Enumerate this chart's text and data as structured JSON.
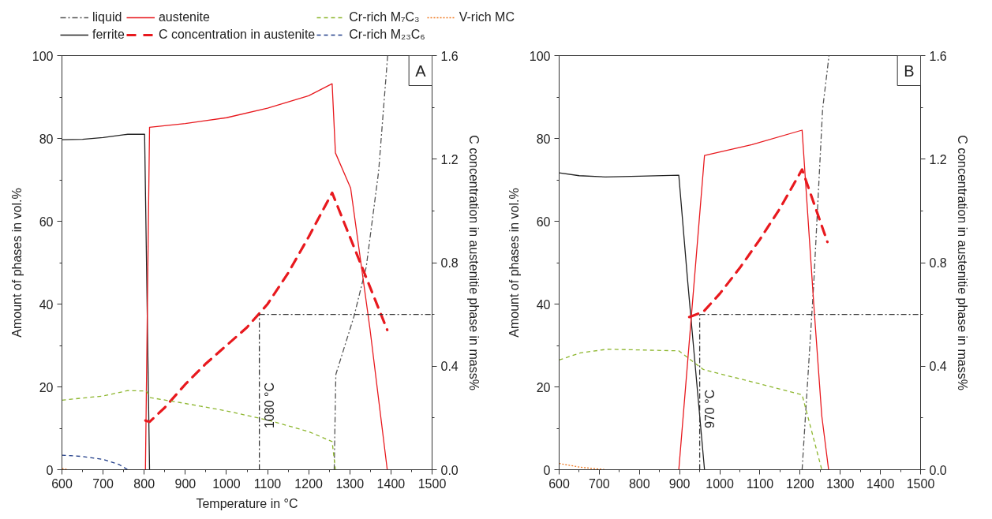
{
  "chart_data": [
    {
      "type": "line",
      "xlabel": "Temperature in °C",
      "ylabel": "Amount of phases in vol.%",
      "y2label": "C concentration in austenitie phase in mass%",
      "xlim": [
        600,
        1500
      ],
      "ylim": [
        0,
        100
      ],
      "y2lim": [
        0,
        1.6
      ],
      "xticks": [
        600,
        700,
        800,
        900,
        1000,
        1100,
        1200,
        1300,
        1400,
        1500
      ],
      "yticks": [
        0,
        20,
        40,
        60,
        80,
        100
      ],
      "y2ticks": [
        {
          "value": 0,
          "label": "0.0"
        },
        {
          "value": 0.4,
          "label": "0.4"
        },
        {
          "value": 0.8,
          "label": "0.8"
        },
        {
          "value": 1.2,
          "label": "1.2"
        },
        {
          "value": 1.6,
          "label": "1.6"
        }
      ],
      "legend": "top",
      "annotations": [
        "A"
      ],
      "series": [
        {
          "name": "liquid",
          "color": "#555555",
          "line_style": "dashdot",
          "x": [
            1262,
            1266,
            1310,
            1340,
            1370,
            1392
          ],
          "values": [
            0,
            23,
            37,
            49,
            72,
            100
          ]
        },
        {
          "name": "ferrite",
          "color": "#222222",
          "line_style": "solid",
          "x": [
            600,
            650,
            700,
            750,
            760,
            801,
            813
          ],
          "values": [
            79.7,
            79.8,
            80.2,
            80.9,
            81,
            81,
            0
          ]
        },
        {
          "name": "austenite",
          "color": "#e8191e",
          "line_style": "solid",
          "x": [
            803,
            813,
            900,
            1000,
            1100,
            1200,
            1257,
            1265,
            1302,
            1349,
            1391
          ],
          "values": [
            0,
            82.7,
            83.6,
            85.0,
            87.3,
            90.3,
            93.2,
            76.5,
            68,
            34,
            0
          ]
        },
        {
          "name": "C concentration in austenite",
          "color": "#e8191e",
          "line_style": "dashed",
          "axis": "y2",
          "x": [
            803,
            813,
            850,
            900,
            950,
            1000,
            1050,
            1100,
            1150,
            1200,
            1257,
            1391
          ],
          "values": [
            0.19,
            0.185,
            0.24,
            0.33,
            0.41,
            0.48,
            0.55,
            0.64,
            0.76,
            0.9,
            1.07,
            0.54
          ]
        },
        {
          "name": "Cr-rich M₇C₃",
          "color": "#8db62e",
          "line_style": "dashed",
          "x": [
            600,
            700,
            760,
            805,
            815,
            900,
            1000,
            1100,
            1200,
            1257,
            1265
          ],
          "values": [
            16.8,
            17.8,
            19.1,
            19.0,
            17.4,
            16.0,
            14.2,
            12.0,
            9.2,
            6.8,
            0
          ]
        },
        {
          "name": "Cr-rich M₂₃C₆",
          "color": "#1f3c88",
          "line_style": "dashed",
          "x": [
            600,
            650,
            700,
            740,
            760
          ],
          "values": [
            3.5,
            3.2,
            2.5,
            1.2,
            0
          ]
        },
        {
          "name": "V-rich MC",
          "color": "#f07820",
          "line_style": "dotted",
          "x": [
            600,
            615
          ],
          "values": [
            0.3,
            0
          ]
        }
      ],
      "ref_lines": [
        {
          "axis": "x",
          "value": 1080,
          "label": "1080 °C",
          "color": "#333333",
          "line_style": "dashdot"
        },
        {
          "axis": "y2",
          "value": 0.6,
          "color": "#333333",
          "line_style": "dashdot"
        }
      ]
    },
    {
      "type": "line",
      "ylabel": "Amount of phases in vol.%",
      "y2label": "C concentration in austenitie phase in mass%",
      "xlim": [
        600,
        1500
      ],
      "ylim": [
        0,
        100
      ],
      "y2lim": [
        0,
        1.6
      ],
      "xticks": [
        600,
        700,
        800,
        900,
        1000,
        1100,
        1200,
        1300,
        1400,
        1500
      ],
      "yticks": [
        0,
        20,
        40,
        60,
        80,
        100
      ],
      "y2ticks": [
        {
          "value": 0,
          "label": "0.0"
        },
        {
          "value": 0.4,
          "label": "0.4"
        },
        {
          "value": 0.8,
          "label": "0.8"
        },
        {
          "value": 1.2,
          "label": "1.2"
        },
        {
          "value": 1.6,
          "label": "1.6"
        }
      ],
      "annotations": [
        "B"
      ],
      "series": [
        {
          "color": "#555555",
          "line_style": "dashdot",
          "x": [
            1205,
            1234,
            1256,
            1272
          ],
          "values": [
            0,
            45,
            87,
            100
          ]
        },
        {
          "color": "#222222",
          "line_style": "solid",
          "x": [
            600,
            650,
            715,
            800,
            898,
            920,
            962
          ],
          "values": [
            71.7,
            71.0,
            70.7,
            70.9,
            71.1,
            45.6,
            0
          ]
        },
        {
          "color": "#e8191e",
          "line_style": "solid",
          "x": [
            898,
            962,
            1080,
            1205,
            1234,
            1254,
            1271
          ],
          "values": [
            0,
            75.9,
            78.5,
            82,
            40,
            13,
            0
          ]
        },
        {
          "color": "#e8191e",
          "line_style": "dashed",
          "axis": "y2",
          "x": [
            924,
            959,
            1000,
            1050,
            1100,
            1150,
            1205,
            1268
          ],
          "values": [
            0.59,
            0.61,
            0.68,
            0.78,
            0.89,
            1.01,
            1.16,
            0.88
          ]
        },
        {
          "color": "#8db62e",
          "line_style": "dashed",
          "x": [
            600,
            653,
            720,
            898,
            959,
            1205,
            1254
          ],
          "values": [
            26.5,
            28.2,
            29.1,
            28.7,
            24.2,
            18.1,
            0
          ]
        },
        {
          "color": "#f07820",
          "line_style": "dotted",
          "x": [
            600,
            653,
            716
          ],
          "values": [
            1.5,
            0.6,
            0
          ]
        }
      ],
      "ref_lines": [
        {
          "axis": "x",
          "value": 950,
          "label": "970 °C",
          "color": "#333333",
          "line_style": "dashdot"
        },
        {
          "axis": "y2",
          "value": 0.6,
          "color": "#333333",
          "line_style": "dashdot"
        }
      ]
    }
  ]
}
